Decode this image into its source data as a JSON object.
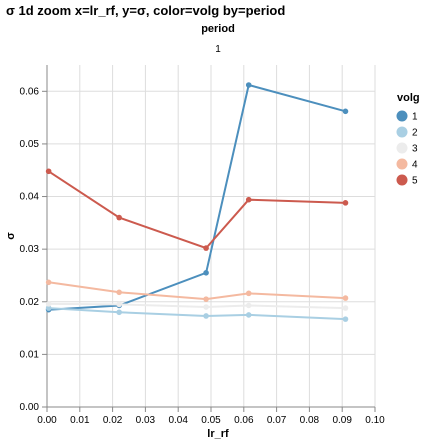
{
  "chart_data": {
    "type": "line",
    "title": "σ 1d zoom x=lr_rf, y=σ, color=volg by=period",
    "facet": {
      "title": "period",
      "label": "1"
    },
    "xlabel": "lr_rf",
    "ylabel": "σ",
    "xlim": [
      0.0,
      0.1
    ],
    "ylim": [
      0.0,
      0.065
    ],
    "x_ticks": [
      "0.00",
      "0.01",
      "0.02",
      "0.03",
      "0.04",
      "0.05",
      "0.06",
      "0.07",
      "0.08",
      "0.09",
      "0.10"
    ],
    "y_ticks": [
      "0.00",
      "0.01",
      "0.02",
      "0.03",
      "0.04",
      "0.05",
      "0.06"
    ],
    "grid": true,
    "legend": {
      "title": "volg",
      "placement": "right"
    },
    "series": [
      {
        "name": "1",
        "color": "#4c8fbd",
        "points": [
          [
            0.0005,
            0.0185
          ],
          [
            0.022,
            0.0193
          ],
          [
            0.0485,
            0.0255
          ],
          [
            0.0615,
            0.0612
          ],
          [
            0.091,
            0.0562
          ]
        ]
      },
      {
        "name": "2",
        "color": "#a9cfe3",
        "points": [
          [
            0.0005,
            0.0188
          ],
          [
            0.022,
            0.018
          ],
          [
            0.0485,
            0.0173
          ],
          [
            0.0615,
            0.0175
          ],
          [
            0.091,
            0.0167
          ]
        ]
      },
      {
        "name": "3",
        "color": "#ececec",
        "points": [
          [
            0.0005,
            0.0196
          ],
          [
            0.022,
            0.0195
          ],
          [
            0.0485,
            0.019
          ],
          [
            0.0615,
            0.0193
          ],
          [
            0.091,
            0.0188
          ]
        ]
      },
      {
        "name": "4",
        "color": "#f4b9a0",
        "points": [
          [
            0.0005,
            0.0237
          ],
          [
            0.022,
            0.0218
          ],
          [
            0.0485,
            0.0205
          ],
          [
            0.0615,
            0.0216
          ],
          [
            0.091,
            0.0207
          ]
        ]
      },
      {
        "name": "5",
        "color": "#cc5a4e",
        "points": [
          [
            0.0005,
            0.0448
          ],
          [
            0.022,
            0.036
          ],
          [
            0.0485,
            0.0302
          ],
          [
            0.0615,
            0.0394
          ],
          [
            0.091,
            0.0388
          ]
        ]
      }
    ]
  }
}
